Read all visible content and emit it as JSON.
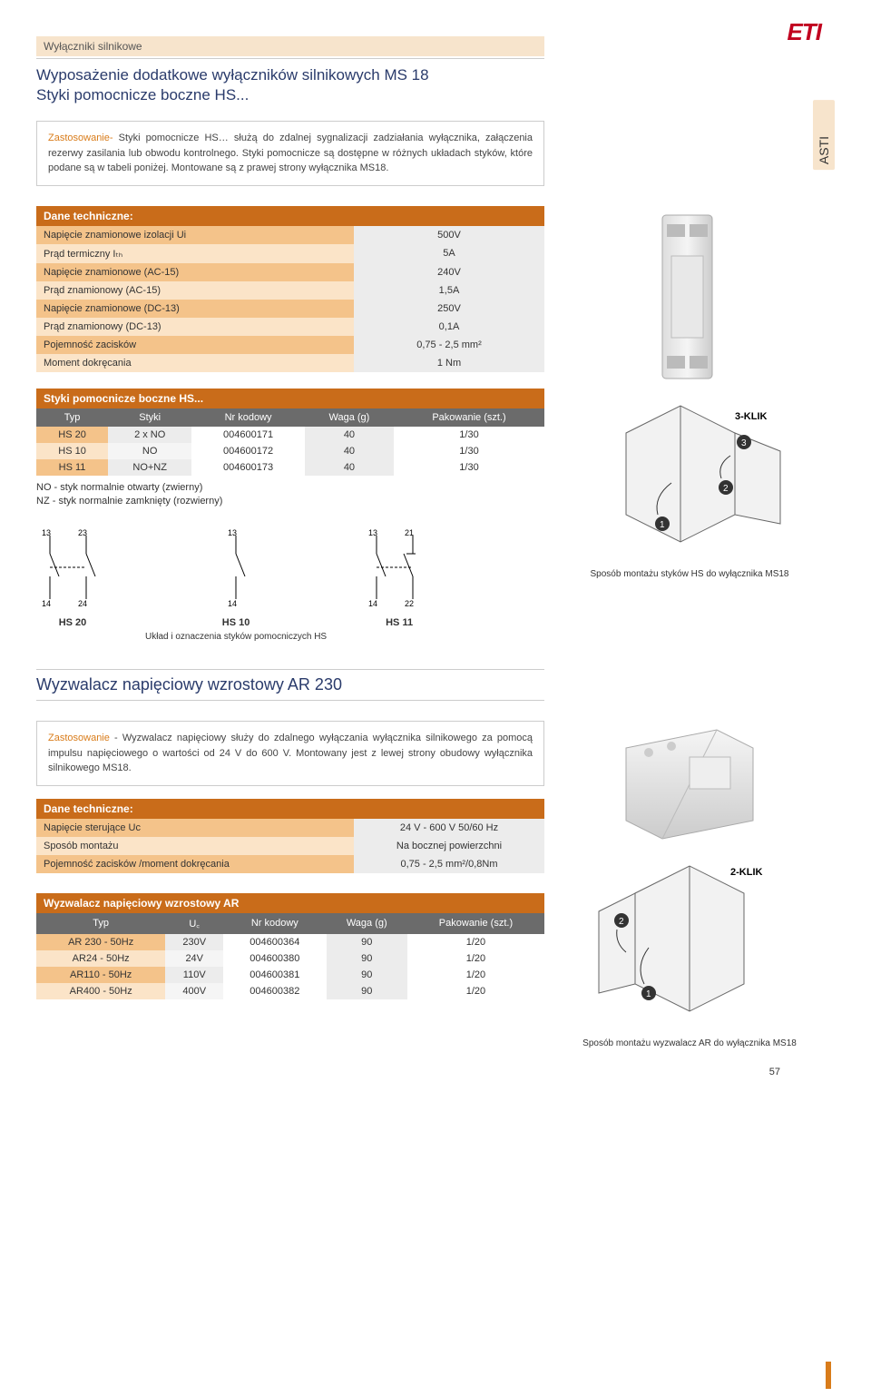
{
  "brand": "ETI",
  "side_tab": "ASTI",
  "breadcrumb": "Wyłączniki silnikowe",
  "page_number": "57",
  "colors": {
    "brand_red": "#c1001f",
    "header_navy": "#2a3b6b",
    "table_header_orange": "#c96c1a",
    "stripe_light": "#fbe4c8",
    "stripe_dark": "#f4c38a",
    "gray_head": "#6b6b6b",
    "side_cream": "#f7e4cc",
    "accent_orange": "#d97c1a"
  },
  "section1": {
    "title1": "Wyposażenie dodatkowe wyłączników silnikowych MS 18",
    "title2": "Styki pomocnicze boczne HS...",
    "desc_label": "Zastosowanie-",
    "desc": " Styki pomocnicze HS… służą do zdalnej sygnalizacji zadziałania wyłącznika, załączenia rezerwy zasilania lub obwodu kontrolnego. Styki pomocnicze są dostępne w różnych układach styków, które podane są w tabeli poniżej. Montowane są z prawej strony wyłącznika MS18.",
    "tech_header": "Dane techniczne:",
    "tech": [
      [
        "Napięcie znamionowe izolacji Ui",
        "500V"
      ],
      [
        "Prąd termiczny Iₜₕ",
        "5A"
      ],
      [
        "Napięcie znamionowe (AC-15)",
        "240V"
      ],
      [
        "Prąd znamionowy (AC-15)",
        "1,5A"
      ],
      [
        "Napięcie znamionowe (DC-13)",
        "250V"
      ],
      [
        "Prąd znamionowy (DC-13)",
        "0,1A"
      ],
      [
        "Pojemność zacisków",
        "0,75 - 2,5 mm²"
      ],
      [
        "Moment dokręcania",
        "1 Nm"
      ]
    ],
    "prod_header": "Styki pomocnicze boczne HS...",
    "prod_cols": [
      "Typ",
      "Styki",
      "Nr kodowy",
      "Waga (g)",
      "Pakowanie (szt.)"
    ],
    "prod_rows": [
      [
        "HS 20",
        "2 x NO",
        "004600171",
        "40",
        "1/30"
      ],
      [
        "HS 10",
        "NO",
        "004600172",
        "40",
        "1/30"
      ],
      [
        "HS 11",
        "NO+NZ",
        "004600173",
        "40",
        "1/30"
      ]
    ],
    "legend1": "NO - styk normalnie otwarty (zwierny)",
    "legend2": "NZ - styk normalnie zamknięty (rozwierny)",
    "schem_labels": [
      "HS 20",
      "HS 10",
      "HS 11"
    ],
    "schem_caption": "Układ i oznaczenia styków pomocniczych HS",
    "mount_label": "3-KLIK",
    "mount_caption": "Sposób montażu styków HS do wyłącznika MS18"
  },
  "section2": {
    "title": "Wyzwalacz napięciowy wzrostowy AR 230",
    "desc_label": "Zastosowanie",
    "desc": " - Wyzwalacz napięciowy służy do zdalnego wyłączania wyłącznika silnikowego za pomocą impulsu napięciowego o wartości od 24 V do 600 V. Montowany jest z lewej strony obudowy wyłącznika silnikowego MS18.",
    "tech_header": "Dane techniczne:",
    "tech": [
      [
        "Napięcie sterujące Uc",
        "24 V - 600 V  50/60 Hz"
      ],
      [
        "Sposób montażu",
        "Na bocznej powierzchni"
      ],
      [
        "Pojemność zacisków /moment dokręcania",
        "0,75 - 2,5 mm²/0,8Nm"
      ]
    ],
    "prod_header": "Wyzwalacz napięciowy wzrostowy AR",
    "prod_cols": [
      "Typ",
      "U꜀",
      "Nr kodowy",
      "Waga (g)",
      "Pakowanie (szt.)"
    ],
    "prod_rows": [
      [
        "AR 230 - 50Hz",
        "230V",
        "004600364",
        "90",
        "1/20"
      ],
      [
        "AR24 - 50Hz",
        "24V",
        "004600380",
        "90",
        "1/20"
      ],
      [
        "AR110 - 50Hz",
        "110V",
        "004600381",
        "90",
        "1/20"
      ],
      [
        "AR400 - 50Hz",
        "400V",
        "004600382",
        "90",
        "1/20"
      ]
    ],
    "mount_label": "2-KLIK",
    "mount_caption": "Sposób montażu wyzwalacz AR do wyłącznika MS18"
  }
}
